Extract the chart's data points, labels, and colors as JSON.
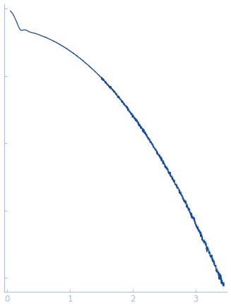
{
  "title": "",
  "xlabel": "",
  "ylabel": "",
  "xlim": [
    -0.05,
    3.5
  ],
  "line_color": "#1a4a9a",
  "error_color": "#8aaadd",
  "background_color": "#ffffff",
  "spine_color": "#aabbdd",
  "tick_color": "#aabbdd",
  "ticklabel_color": "#8aaabb",
  "xticks": [
    0,
    1,
    2,
    3
  ],
  "line_width": 0.9,
  "figsize": [
    3.27,
    4.37
  ],
  "dpi": 100
}
